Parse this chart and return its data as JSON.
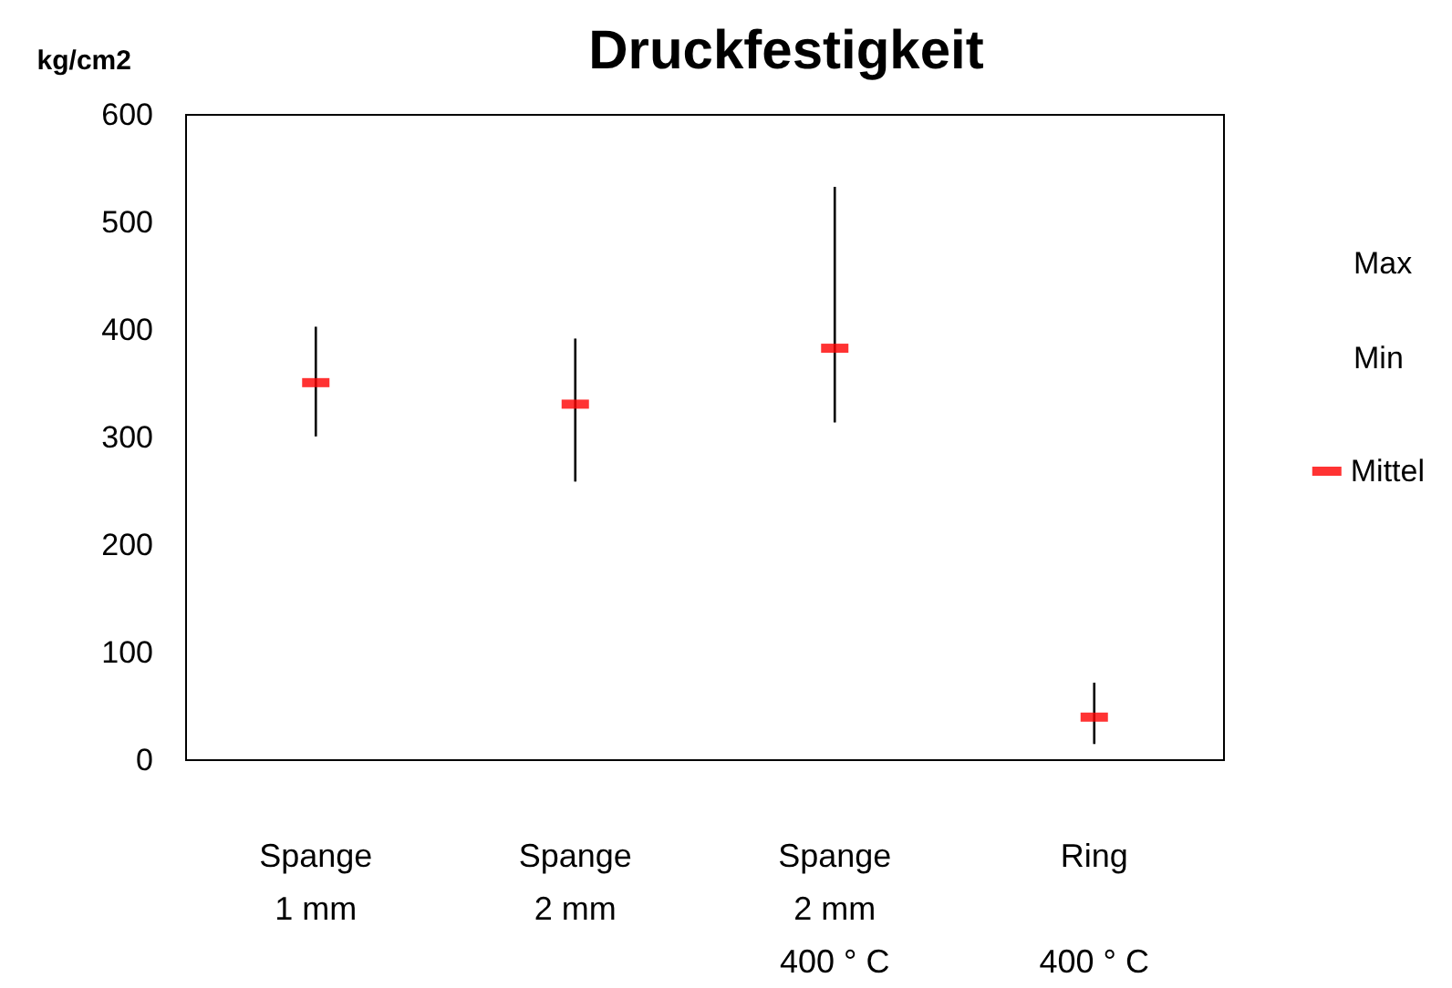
{
  "chart_data": {
    "type": "scatter",
    "title": "Druckfestigkeit",
    "ylabel": "kg/cm2",
    "categories": [
      "Spange\n1 mm",
      "Spange\n2 mm",
      "Spange\n2 mm\n400 ° C",
      "Ring\n\n400 ° C"
    ],
    "series": [
      {
        "name": "Mittel",
        "color": "#ff0000",
        "marker": "square",
        "values": [
          351,
          331,
          383,
          40
        ],
        "errors": [
          [
            301,
            403
          ],
          [
            259,
            392
          ],
          [
            314,
            533
          ],
          [
            15,
            72
          ]
        ]
      }
    ],
    "annotations": [
      "Max",
      "Min"
    ],
    "ylim": [
      0,
      600
    ],
    "yticks": [
      0,
      100,
      200,
      300,
      400,
      500,
      600
    ],
    "grid": false,
    "legend": "right"
  }
}
